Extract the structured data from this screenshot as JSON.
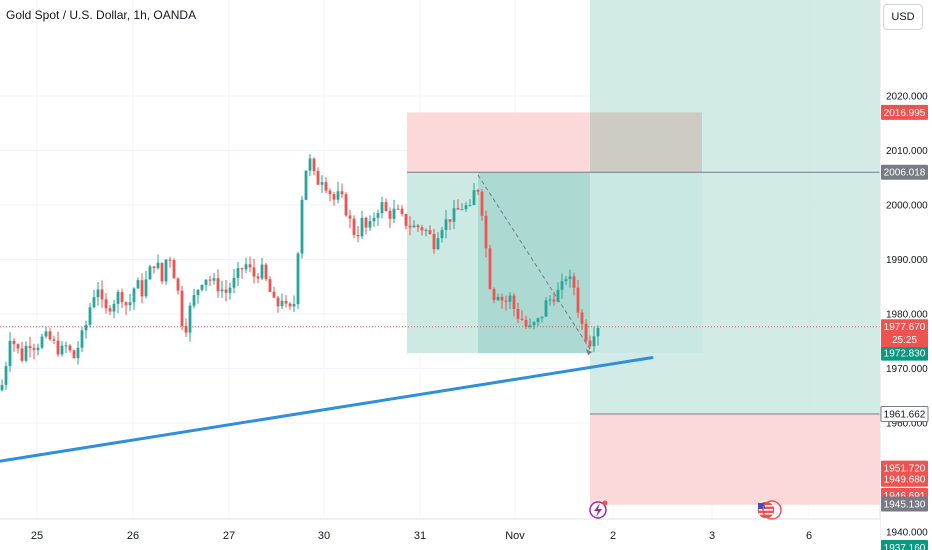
{
  "title": "Gold Spot / U.S. Dollar, 1h, OANDA",
  "currency_label": "USD",
  "colors": {
    "up": "#26a69a",
    "down": "#ef5350",
    "trendline": "#2f8fdd",
    "target_zone": "#cde9e4",
    "target_zone_dark": "#a9d8d0",
    "stop_zone": "#fbd9d9",
    "grid": "#f0f3fa"
  },
  "chart_data": {
    "type": "candlestick",
    "title": "Gold Spot / U.S. Dollar, 1h, OANDA",
    "x_tick_labels": [
      "25",
      "26",
      "27",
      "30",
      "31",
      "Nov",
      "2",
      "3",
      "6"
    ],
    "y_tick_labels": [
      "2020.000",
      "2010.000",
      "2000.000",
      "1990.000",
      "1980.000",
      "1970.000",
      "1960.000",
      "1940.000"
    ],
    "ylim": [
      1933,
      2035
    ],
    "current_price": "1977.670",
    "countdown": "25:25",
    "price_tags": [
      {
        "text": "2016.995",
        "value": 2016.995,
        "color": "#ef5350"
      },
      {
        "text": "2006.018",
        "value": 2006.018,
        "color": "#787b86"
      },
      {
        "text": "1972.830",
        "value": 1972.83,
        "color": "#089981"
      },
      {
        "text": "1961.662",
        "value": 1961.662,
        "color": "#ffffff"
      },
      {
        "text": "1951.720",
        "value": 1951.72,
        "color": "#ef5350"
      },
      {
        "text": "1949.680",
        "value": 1949.68,
        "color": "#ef5350"
      },
      {
        "text": "1946.691",
        "value": 1946.691,
        "color": "#ef5350"
      },
      {
        "text": "1945.130",
        "value": 1945.13,
        "color": "#787b86"
      },
      {
        "text": "1937.160",
        "value": 1937.16,
        "color": "#089981"
      }
    ],
    "close_path": [
      [
        0,
        1965
      ],
      [
        6,
        1971
      ],
      [
        10,
        1976
      ],
      [
        16,
        1974
      ],
      [
        22,
        1972
      ],
      [
        28,
        1975
      ],
      [
        36,
        1974
      ],
      [
        44,
        1976
      ],
      [
        52,
        1975
      ],
      [
        60,
        1973
      ],
      [
        66,
        1974
      ],
      [
        74,
        1972
      ],
      [
        80,
        1975
      ],
      [
        86,
        1978
      ],
      [
        92,
        1983
      ],
      [
        98,
        1985
      ],
      [
        104,
        1980
      ],
      [
        112,
        1982
      ],
      [
        120,
        1984
      ],
      [
        128,
        1981
      ],
      [
        136,
        1986
      ],
      [
        142,
        1984
      ],
      [
        150,
        1988
      ],
      [
        156,
        1990
      ],
      [
        162,
        1986
      ],
      [
        168,
        1992
      ],
      [
        172,
        1989
      ],
      [
        178,
        1984
      ],
      [
        184,
        1976
      ],
      [
        190,
        1981
      ],
      [
        196,
        1984
      ],
      [
        204,
        1987
      ],
      [
        212,
        1986
      ],
      [
        218,
        1985
      ],
      [
        226,
        1984
      ],
      [
        234,
        1986
      ],
      [
        240,
        1988
      ],
      [
        246,
        1989
      ],
      [
        254,
        1987
      ],
      [
        262,
        1988
      ],
      [
        270,
        1984
      ],
      [
        276,
        1981
      ],
      [
        282,
        1983
      ],
      [
        288,
        1980
      ],
      [
        294,
        1982
      ],
      [
        300,
        1997
      ],
      [
        304,
        2006
      ],
      [
        310,
        2008
      ],
      [
        316,
        2004
      ],
      [
        322,
        2005
      ],
      [
        328,
        2003
      ],
      [
        334,
        2001
      ],
      [
        340,
        2002
      ],
      [
        346,
        1999
      ],
      [
        352,
        1996
      ],
      [
        356,
        1994
      ],
      [
        362,
        1997
      ],
      [
        368,
        1995
      ],
      [
        376,
        1999
      ],
      [
        382,
        2000
      ],
      [
        388,
        1998
      ],
      [
        396,
        1999
      ],
      [
        404,
        1997
      ],
      [
        412,
        1996
      ],
      [
        420,
        1996
      ],
      [
        428,
        1995
      ],
      [
        434,
        1993
      ],
      [
        440,
        1996
      ],
      [
        446,
        1997
      ],
      [
        452,
        1998
      ],
      [
        458,
        1999
      ],
      [
        464,
        2000
      ],
      [
        470,
        1999
      ],
      [
        476,
        2004
      ],
      [
        480,
        2002
      ],
      [
        484,
        1996
      ],
      [
        488,
        1988
      ],
      [
        492,
        1983
      ],
      [
        498,
        1984
      ],
      [
        504,
        1982
      ],
      [
        510,
        1983
      ],
      [
        516,
        1980
      ],
      [
        522,
        1979
      ],
      [
        528,
        1977
      ],
      [
        534,
        1978
      ],
      [
        540,
        1979
      ],
      [
        546,
        1982
      ],
      [
        552,
        1983
      ],
      [
        558,
        1984
      ],
      [
        562,
        1985
      ],
      [
        566,
        1987
      ],
      [
        570,
        1986
      ],
      [
        574,
        1985
      ],
      [
        578,
        1981
      ],
      [
        582,
        1978
      ],
      [
        586,
        1976
      ],
      [
        590,
        1975
      ],
      [
        594,
        1977
      ],
      [
        598,
        1978
      ]
    ],
    "trendline": {
      "x": [
        0,
        652
      ],
      "y": [
        1953,
        1972
      ]
    },
    "projection_line": {
      "x": [
        478,
        592
      ],
      "y": [
        2005.5,
        1973
      ]
    },
    "position_tool_left": {
      "x": [
        407,
        702
      ],
      "entry": 1972.83,
      "target": 2006.018,
      "stop": 2016.995,
      "active_from_x": 478
    },
    "position_tool_right": {
      "x": [
        590,
        880
      ],
      "entry": 1961.662,
      "target": 2035,
      "stop": 1945.0
    }
  }
}
